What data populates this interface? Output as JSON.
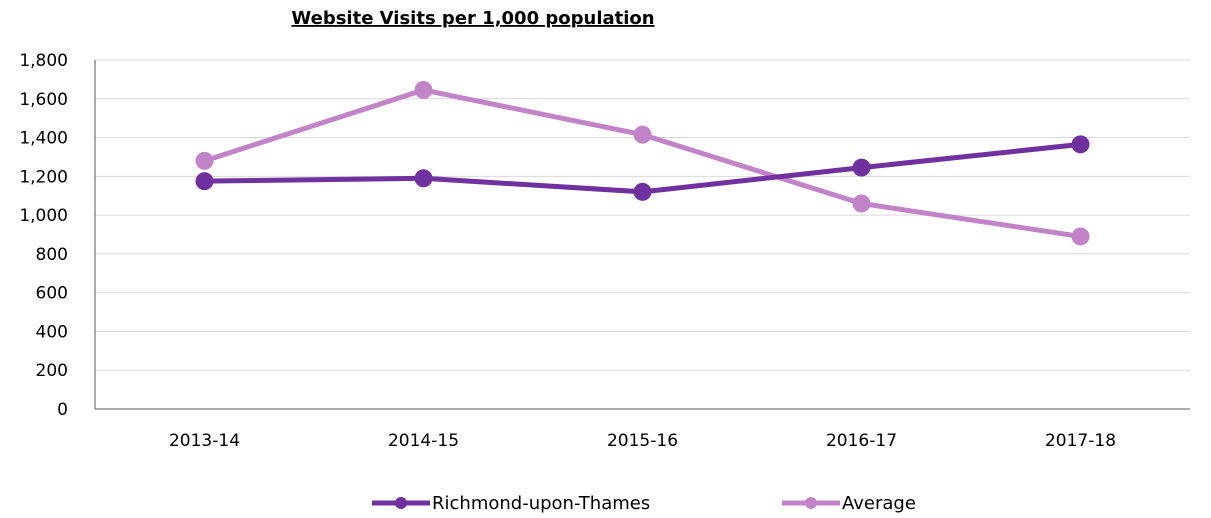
{
  "chart_data": {
    "type": "line",
    "title": "Website Visits per 1,000 population",
    "xlabel": "",
    "ylabel": "",
    "categories": [
      "2013-14",
      "2014-15",
      "2015-16",
      "2016-17",
      "2017-18"
    ],
    "ylim": [
      0,
      1800
    ],
    "yticks": [
      0,
      200,
      400,
      600,
      800,
      1000,
      1200,
      1400,
      1600,
      1800
    ],
    "ytick_labels": [
      "0",
      "200",
      "400",
      "600",
      "800",
      "1,000",
      "1,200",
      "1,400",
      "1,600",
      "1,800"
    ],
    "grid": true,
    "legend_position": "bottom",
    "series": [
      {
        "name": "Richmond-upon-Thames",
        "color": "#7030a0",
        "values": [
          1175,
          1190,
          1120,
          1245,
          1365
        ]
      },
      {
        "name": "Average",
        "color": "#c283c8",
        "values": [
          1280,
          1645,
          1415,
          1060,
          890
        ]
      }
    ]
  }
}
